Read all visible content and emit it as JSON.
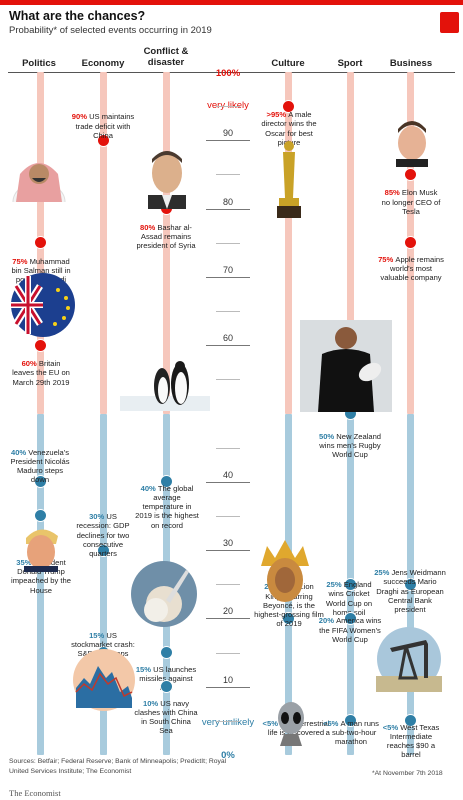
{
  "title": "What are the chances?",
  "subtitle": "Probability* of selected events occurring in 2019",
  "categories": [
    "Politics",
    "Economy",
    "Conflict & disaster",
    "Culture",
    "Sport",
    "Business"
  ],
  "axis": {
    "top_label": "100%",
    "bottom_label": "0%",
    "ticks": [
      "90",
      "80",
      "70",
      "60",
      "40",
      "30",
      "20",
      "10"
    ],
    "likely_label": "very likely",
    "unlikely_label": "very unlikely"
  },
  "colors": {
    "likely": "#e3120b",
    "likely_stem": "#f6c7bc",
    "unlikely": "#2f7fa6",
    "unlikely_stem": "#a8cbdd",
    "accent": "#e3120b"
  },
  "chart_data": {
    "type": "dot-plot",
    "title": "What are the chances?",
    "subtitle": "Probability* of selected events occurring in 2019",
    "ylim": [
      0,
      100
    ],
    "y_unit": "%",
    "events": [
      {
        "category": "Politics",
        "value": 75,
        "pct": "75%",
        "text": "Muhammad bin Salman still in power in Saudi Arabia"
      },
      {
        "category": "Politics",
        "value": 60,
        "pct": "60%",
        "text": "Britain leaves the EU on March 29th 2019"
      },
      {
        "category": "Politics",
        "value": 40,
        "pct": "40%",
        "text": "Venezuela's President Nicolás Maduro steps down"
      },
      {
        "category": "Politics",
        "value": 35,
        "pct": "35%",
        "text": "President Donald Trump impeached by the House"
      },
      {
        "category": "Economy",
        "value": 90,
        "pct": "90%",
        "text": "US maintains trade deficit with China"
      },
      {
        "category": "Economy",
        "value": 30,
        "pct": "30%",
        "text": "US recession: GDP declines for two consecutive quarters"
      },
      {
        "category": "Economy",
        "value": 15,
        "pct": "15%",
        "text": "US stockmarket crash: S&P 500 drops 20%"
      },
      {
        "category": "Conflict & disaster",
        "value": 80,
        "pct": "80%",
        "text": "Bashar al-Assad remains president of Syria"
      },
      {
        "category": "Conflict & disaster",
        "value": 40,
        "pct": "40%",
        "text": "The global average temperature in 2019 is the highest on record"
      },
      {
        "category": "Conflict & disaster",
        "value": 15,
        "pct": "15%",
        "text": "US launches missiles against Iran"
      },
      {
        "category": "Conflict & disaster",
        "value": 10,
        "pct": "10%",
        "text": "US navy clashes with China in South China Sea"
      },
      {
        "category": "Culture",
        "value": 95,
        "pct": ">95%",
        "text": "A male director wins the Oscar for best picture"
      },
      {
        "category": "Culture",
        "value": 20,
        "pct": "20%",
        "text": "\"The Lion King\", starring Beyoncé, is the highest-grossing film of 2019"
      },
      {
        "category": "Culture",
        "value": 5,
        "pct": "<5%",
        "text": "Extraterrestrial life is discovered"
      },
      {
        "category": "Sport",
        "value": 50,
        "pct": "50%",
        "text": "New Zealand wins men's Rugby World Cup"
      },
      {
        "category": "Sport",
        "value": 25,
        "pct": "25%",
        "text": "England wins Cricket World Cup on home soil"
      },
      {
        "category": "Sport",
        "value": 20,
        "pct": "20%",
        "text": "America wins the FIFA Women's World Cup"
      },
      {
        "category": "Sport",
        "value": 5,
        "pct": "<5%",
        "text": "A man runs a sub-two-hour marathon"
      },
      {
        "category": "Business",
        "value": 85,
        "pct": "85%",
        "text": "Elon Musk no longer CEO of Tesla"
      },
      {
        "category": "Business",
        "value": 75,
        "pct": "75%",
        "text": "Apple remains world's most valuable company"
      },
      {
        "category": "Business",
        "value": 25,
        "pct": "25%",
        "text": "Jens Weidmann succeeds Mario Draghi as European Central Bank president"
      },
      {
        "category": "Business",
        "value": 5,
        "pct": "<5%",
        "text": "West Texas Intermediate reaches $90 a barrel"
      }
    ]
  },
  "source": "Sources: Betfair; Federal Reserve; Bank of Minneapolis; PredictIt; Royal United Services Institute; The Economist",
  "footnote": "*At November 7th 2018",
  "logo": "The Economist"
}
